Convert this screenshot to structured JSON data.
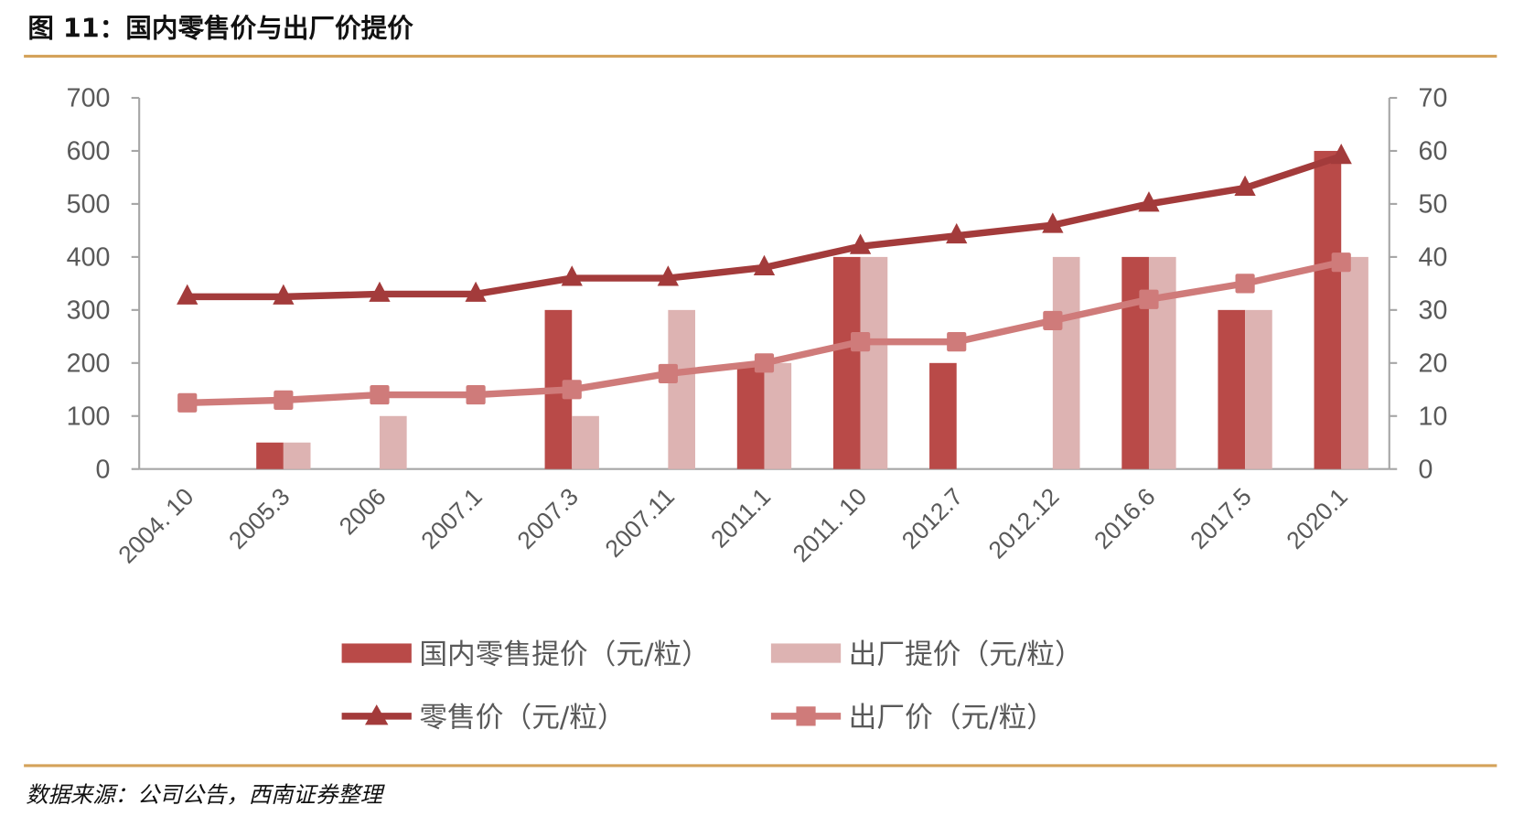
{
  "title": "图 11：国内零售价与出厂价提价",
  "source": "数据来源：公司公告，西南证券整理",
  "colors": {
    "rule": "#d4a25a",
    "retail_bar": "#b94a48",
    "factory_bar": "#ddb3b2",
    "retail_line": "#a33b3b",
    "factory_line": "#cf7b7a",
    "axis": "#a6a6a6"
  },
  "chart_data": {
    "type": "bar",
    "categories": [
      "2004. 10",
      "2005.3",
      "2006",
      "2007.1",
      "2007.3",
      "2007.11",
      "2011.1",
      "2011. 10",
      "2012.7",
      "2012.12",
      "2016.6",
      "2017.5",
      "2020.1"
    ],
    "y_left": {
      "min": 0,
      "max": 700,
      "ticks": [
        "0",
        "100",
        "200",
        "300",
        "400",
        "500",
        "600",
        "700"
      ]
    },
    "y_right": {
      "min": 0,
      "max": 70,
      "ticks": [
        "0",
        "10",
        "20",
        "30",
        "40",
        "50",
        "60",
        "70"
      ]
    },
    "grid": false,
    "legend_position": "bottom",
    "series": [
      {
        "name": "国内零售提价（元/粒）",
        "type": "bar",
        "axis": "left",
        "values": [
          0,
          50,
          0,
          0,
          300,
          0,
          200,
          400,
          200,
          0,
          400,
          300,
          600
        ]
      },
      {
        "name": "出厂提价（元/粒）",
        "type": "bar",
        "axis": "left",
        "values": [
          0,
          50,
          100,
          0,
          100,
          300,
          200,
          400,
          0,
          400,
          400,
          300,
          400
        ]
      },
      {
        "name": "零售价（元/粒）",
        "type": "line",
        "marker": "triangle",
        "axis": "right",
        "values": [
          32.5,
          32.5,
          33,
          33,
          36,
          36,
          38,
          42,
          44,
          46,
          50,
          53,
          59
        ]
      },
      {
        "name": "出厂价（元/粒）",
        "type": "line",
        "marker": "square",
        "axis": "right",
        "values": [
          12.5,
          13,
          14,
          14,
          15,
          18,
          20,
          24,
          24,
          28,
          32,
          35,
          39
        ]
      }
    ]
  }
}
